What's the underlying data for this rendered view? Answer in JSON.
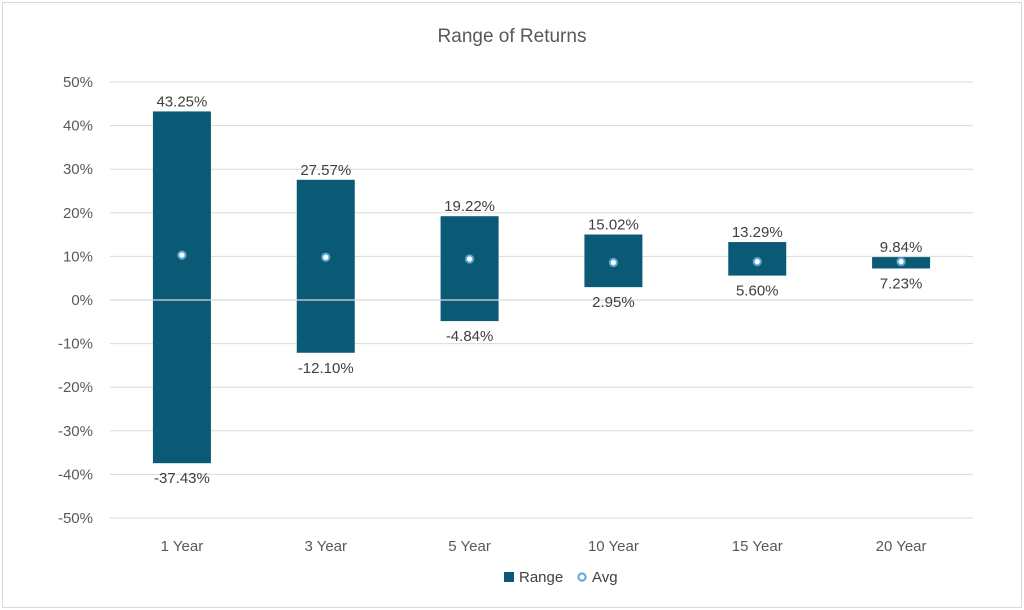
{
  "chart_data": {
    "type": "bar",
    "title": "Range of Returns",
    "categories": [
      "1 Year",
      "3 Year",
      "5 Year",
      "10 Year",
      "15 Year",
      "20 Year"
    ],
    "series": [
      {
        "name": "Range",
        "high": [
          43.25,
          27.57,
          19.22,
          15.02,
          13.29,
          9.84
        ],
        "low": [
          -37.43,
          -12.1,
          -4.84,
          2.95,
          5.6,
          7.23
        ],
        "high_labels": [
          "43.25%",
          "27.57%",
          "19.22%",
          "15.02%",
          "13.29%",
          "9.84%"
        ],
        "low_labels": [
          "-37.43%",
          "-12.10%",
          "-4.84%",
          "2.95%",
          "5.60%",
          "7.23%"
        ],
        "color": "#0b5a75"
      },
      {
        "name": "Avg",
        "values": [
          10.3,
          9.8,
          9.4,
          8.6,
          8.8,
          8.8
        ],
        "color": "#5fa8d3"
      }
    ],
    "ylim": [
      -50,
      50
    ],
    "yticks": [
      50,
      40,
      30,
      20,
      10,
      0,
      -10,
      -20,
      -30,
      -40,
      -50
    ],
    "ytick_labels": [
      "50%",
      "40%",
      "30%",
      "20%",
      "10%",
      "0%",
      "-10%",
      "-20%",
      "-30%",
      "-40%",
      "-50%"
    ],
    "grid": true,
    "legend": "bottom"
  }
}
